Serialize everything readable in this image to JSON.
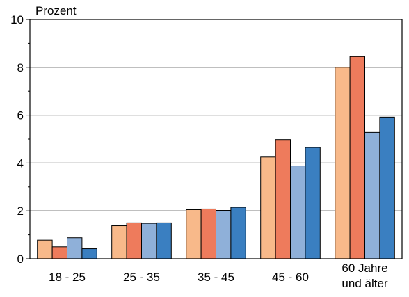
{
  "chart_data": {
    "type": "bar",
    "ylabel": "Prozent",
    "ylim": [
      0,
      10
    ],
    "yticks": [
      "0",
      "2",
      "4",
      "6",
      "8",
      "10"
    ],
    "categories": [
      [
        "18 - 25"
      ],
      [
        "25 - 35"
      ],
      [
        "35 - 45"
      ],
      [
        "45 - 60"
      ],
      [
        "60 Jahre",
        "und älter"
      ]
    ],
    "series": [
      {
        "color": "#f8b98a",
        "values": [
          0.78,
          1.38,
          2.05,
          4.25,
          8.0
        ]
      },
      {
        "color": "#ee7b5c",
        "values": [
          0.5,
          1.5,
          2.08,
          4.98,
          8.45
        ]
      },
      {
        "color": "#8fb0d9",
        "values": [
          0.88,
          1.48,
          2.02,
          3.88,
          5.28
        ]
      },
      {
        "color": "#3a7fc1",
        "values": [
          0.42,
          1.5,
          2.15,
          4.65,
          5.92
        ]
      }
    ],
    "grid": true,
    "legend": "none"
  }
}
